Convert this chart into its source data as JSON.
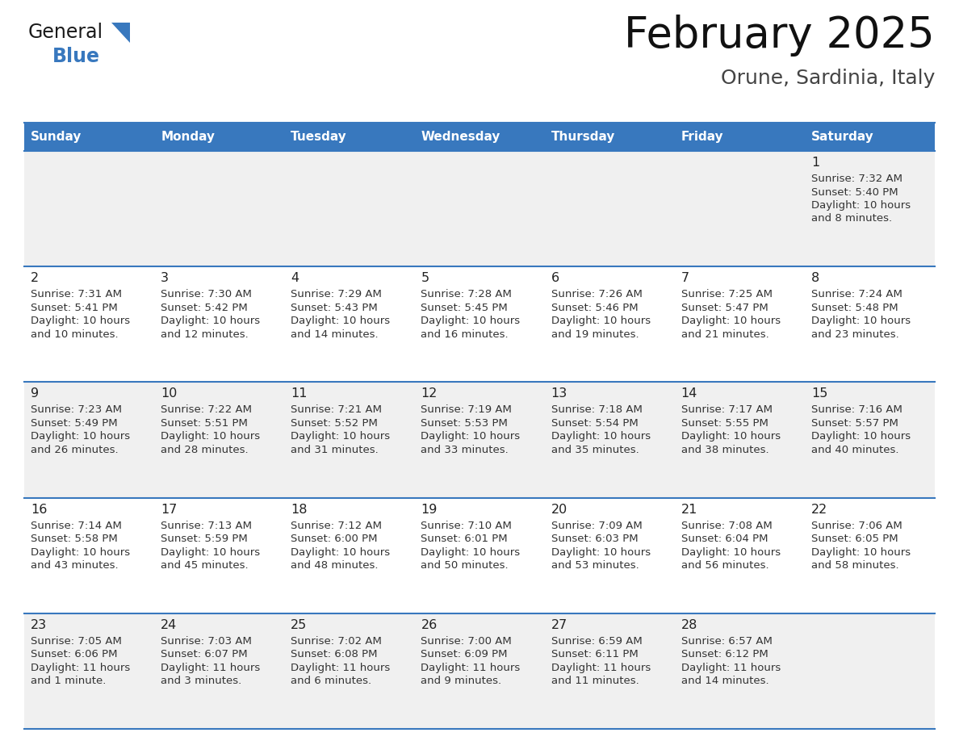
{
  "title": "February 2025",
  "subtitle": "Orune, Sardinia, Italy",
  "header_color": "#3878BE",
  "header_text_color": "#FFFFFF",
  "day_names": [
    "Sunday",
    "Monday",
    "Tuesday",
    "Wednesday",
    "Thursday",
    "Friday",
    "Saturday"
  ],
  "background_color": "#FFFFFF",
  "cell_bg_light": "#F0F0F0",
  "cell_bg_white": "#FFFFFF",
  "cell_border_color": "#3878BE",
  "date_text_color": "#222222",
  "info_text_color": "#333333",
  "logo_general_color": "#1a1a1a",
  "logo_blue_color": "#3878BE",
  "weeks": [
    [
      null,
      null,
      null,
      null,
      null,
      null,
      1
    ],
    [
      2,
      3,
      4,
      5,
      6,
      7,
      8
    ],
    [
      9,
      10,
      11,
      12,
      13,
      14,
      15
    ],
    [
      16,
      17,
      18,
      19,
      20,
      21,
      22
    ],
    [
      23,
      24,
      25,
      26,
      27,
      28,
      null
    ]
  ],
  "day_data": {
    "1": {
      "sunrise": "7:32 AM",
      "sunset": "5:40 PM",
      "daylight_line1": "Daylight: 10 hours",
      "daylight_line2": "and 8 minutes."
    },
    "2": {
      "sunrise": "7:31 AM",
      "sunset": "5:41 PM",
      "daylight_line1": "Daylight: 10 hours",
      "daylight_line2": "and 10 minutes."
    },
    "3": {
      "sunrise": "7:30 AM",
      "sunset": "5:42 PM",
      "daylight_line1": "Daylight: 10 hours",
      "daylight_line2": "and 12 minutes."
    },
    "4": {
      "sunrise": "7:29 AM",
      "sunset": "5:43 PM",
      "daylight_line1": "Daylight: 10 hours",
      "daylight_line2": "and 14 minutes."
    },
    "5": {
      "sunrise": "7:28 AM",
      "sunset": "5:45 PM",
      "daylight_line1": "Daylight: 10 hours",
      "daylight_line2": "and 16 minutes."
    },
    "6": {
      "sunrise": "7:26 AM",
      "sunset": "5:46 PM",
      "daylight_line1": "Daylight: 10 hours",
      "daylight_line2": "and 19 minutes."
    },
    "7": {
      "sunrise": "7:25 AM",
      "sunset": "5:47 PM",
      "daylight_line1": "Daylight: 10 hours",
      "daylight_line2": "and 21 minutes."
    },
    "8": {
      "sunrise": "7:24 AM",
      "sunset": "5:48 PM",
      "daylight_line1": "Daylight: 10 hours",
      "daylight_line2": "and 23 minutes."
    },
    "9": {
      "sunrise": "7:23 AM",
      "sunset": "5:49 PM",
      "daylight_line1": "Daylight: 10 hours",
      "daylight_line2": "and 26 minutes."
    },
    "10": {
      "sunrise": "7:22 AM",
      "sunset": "5:51 PM",
      "daylight_line1": "Daylight: 10 hours",
      "daylight_line2": "and 28 minutes."
    },
    "11": {
      "sunrise": "7:21 AM",
      "sunset": "5:52 PM",
      "daylight_line1": "Daylight: 10 hours",
      "daylight_line2": "and 31 minutes."
    },
    "12": {
      "sunrise": "7:19 AM",
      "sunset": "5:53 PM",
      "daylight_line1": "Daylight: 10 hours",
      "daylight_line2": "and 33 minutes."
    },
    "13": {
      "sunrise": "7:18 AM",
      "sunset": "5:54 PM",
      "daylight_line1": "Daylight: 10 hours",
      "daylight_line2": "and 35 minutes."
    },
    "14": {
      "sunrise": "7:17 AM",
      "sunset": "5:55 PM",
      "daylight_line1": "Daylight: 10 hours",
      "daylight_line2": "and 38 minutes."
    },
    "15": {
      "sunrise": "7:16 AM",
      "sunset": "5:57 PM",
      "daylight_line1": "Daylight: 10 hours",
      "daylight_line2": "and 40 minutes."
    },
    "16": {
      "sunrise": "7:14 AM",
      "sunset": "5:58 PM",
      "daylight_line1": "Daylight: 10 hours",
      "daylight_line2": "and 43 minutes."
    },
    "17": {
      "sunrise": "7:13 AM",
      "sunset": "5:59 PM",
      "daylight_line1": "Daylight: 10 hours",
      "daylight_line2": "and 45 minutes."
    },
    "18": {
      "sunrise": "7:12 AM",
      "sunset": "6:00 PM",
      "daylight_line1": "Daylight: 10 hours",
      "daylight_line2": "and 48 minutes."
    },
    "19": {
      "sunrise": "7:10 AM",
      "sunset": "6:01 PM",
      "daylight_line1": "Daylight: 10 hours",
      "daylight_line2": "and 50 minutes."
    },
    "20": {
      "sunrise": "7:09 AM",
      "sunset": "6:03 PM",
      "daylight_line1": "Daylight: 10 hours",
      "daylight_line2": "and 53 minutes."
    },
    "21": {
      "sunrise": "7:08 AM",
      "sunset": "6:04 PM",
      "daylight_line1": "Daylight: 10 hours",
      "daylight_line2": "and 56 minutes."
    },
    "22": {
      "sunrise": "7:06 AM",
      "sunset": "6:05 PM",
      "daylight_line1": "Daylight: 10 hours",
      "daylight_line2": "and 58 minutes."
    },
    "23": {
      "sunrise": "7:05 AM",
      "sunset": "6:06 PM",
      "daylight_line1": "Daylight: 11 hours",
      "daylight_line2": "and 1 minute."
    },
    "24": {
      "sunrise": "7:03 AM",
      "sunset": "6:07 PM",
      "daylight_line1": "Daylight: 11 hours",
      "daylight_line2": "and 3 minutes."
    },
    "25": {
      "sunrise": "7:02 AM",
      "sunset": "6:08 PM",
      "daylight_line1": "Daylight: 11 hours",
      "daylight_line2": "and 6 minutes."
    },
    "26": {
      "sunrise": "7:00 AM",
      "sunset": "6:09 PM",
      "daylight_line1": "Daylight: 11 hours",
      "daylight_line2": "and 9 minutes."
    },
    "27": {
      "sunrise": "6:59 AM",
      "sunset": "6:11 PM",
      "daylight_line1": "Daylight: 11 hours",
      "daylight_line2": "and 11 minutes."
    },
    "28": {
      "sunrise": "6:57 AM",
      "sunset": "6:12 PM",
      "daylight_line1": "Daylight: 11 hours",
      "daylight_line2": "and 14 minutes."
    }
  }
}
